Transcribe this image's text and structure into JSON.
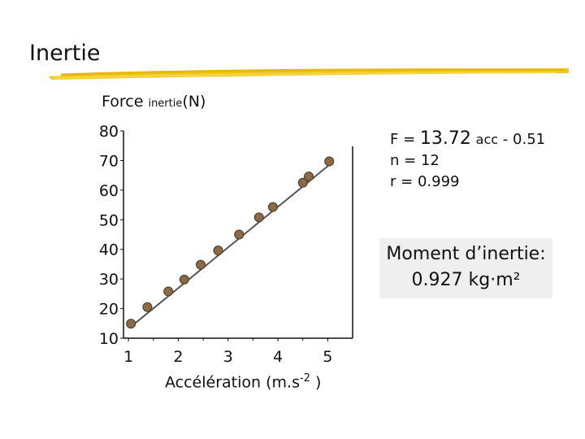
{
  "slide": {
    "title": "Inertie"
  },
  "chart_data": {
    "type": "scatter",
    "title": "",
    "ylabel_main": "Force",
    "ylabel_sub": "inertie",
    "ylabel_unit": "(N)",
    "xlabel_main": "Accélération (m.s",
    "xlabel_exp": "-2",
    "xlabel_end": " )",
    "xlim": [
      0.9,
      5.5
    ],
    "ylim": [
      10,
      80
    ],
    "x_ticks": [
      1,
      2,
      3,
      4,
      5
    ],
    "y_ticks": [
      10,
      20,
      30,
      40,
      50,
      60,
      70,
      80
    ],
    "points": [
      {
        "x": 1.05,
        "y": 14.9
      },
      {
        "x": 1.38,
        "y": 20.5
      },
      {
        "x": 1.8,
        "y": 25.8
      },
      {
        "x": 2.12,
        "y": 29.8
      },
      {
        "x": 2.45,
        "y": 34.8
      },
      {
        "x": 2.8,
        "y": 39.6
      },
      {
        "x": 3.22,
        "y": 45.0
      },
      {
        "x": 3.62,
        "y": 50.8
      },
      {
        "x": 3.9,
        "y": 54.3
      },
      {
        "x": 4.5,
        "y": 62.5
      },
      {
        "x": 4.62,
        "y": 64.6
      },
      {
        "x": 5.03,
        "y": 69.7
      }
    ],
    "fit": {
      "slope": 13.72,
      "intercept": -0.51
    }
  },
  "equation": {
    "f_label": "F",
    "eq1": "=",
    "slope": "13.72",
    "acc": "acc",
    "minus": "-",
    "intercept": "0.51",
    "n_label": "n",
    "eq2": "=",
    "n_value": "12",
    "r_label": "r",
    "eq3": "=",
    "r_value": "0.999"
  },
  "moment": {
    "line1": "Moment d’inertie:",
    "line2": "0.927 kg·m²"
  },
  "colors": {
    "point_fill": "#8b6a47",
    "point_stroke": "#4a3825",
    "line": "#555555",
    "axis": "#111111",
    "underline": "#f0c419",
    "box_bg": "#efefef"
  }
}
